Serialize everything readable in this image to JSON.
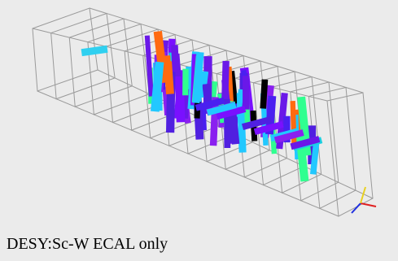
{
  "caption": "DESY:Sc-W ECAL only"
}
